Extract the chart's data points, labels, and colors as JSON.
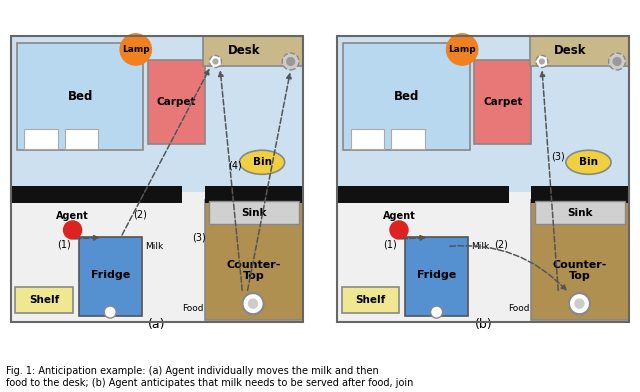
{
  "fig_width": 6.4,
  "fig_height": 3.92,
  "bg_color": "#ffffff",
  "room_bg": "#cce0f0",
  "kitchen_bg": "#f0f0f0",
  "black_bar_color": "#111111",
  "bed_color": "#b8d8f0",
  "carpet_color": "#e87878",
  "lamp_color": "#f08020",
  "desk_color": "#c8b88a",
  "bin_color": "#f0d040",
  "fridge_color": "#5590d0",
  "shelf_color": "#f0e890",
  "countertop_color": "#b09050",
  "sink_color": "#d0d0d0",
  "agent_color": "#dd2222",
  "arrow_color": "#555555",
  "panels": [
    "(a)",
    "(b)"
  ],
  "caption": "Fig. 1: Anticipation example: (a) Agent individually moves the milk and then\nfood to the desk; (b) Agent anticipates that milk needs to be served after food, join"
}
